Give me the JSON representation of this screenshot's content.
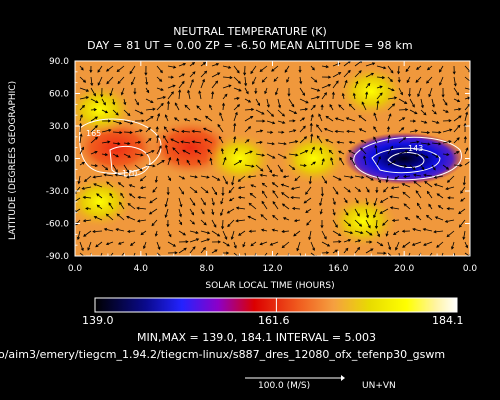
{
  "chart_data": {
    "type": "heatmap",
    "title": "NEUTRAL TEMPERATURE (K)",
    "subtitle": "DAY =   81   UT =   0.00   ZP =   -6.50   MEAN ALTITUDE =   98 km",
    "xlabel": "SOLAR LOCAL TIME (HOURS)",
    "ylabel": "LATITUDE (DEGREES GEOGRAPHIC)",
    "xlim": [
      0,
      24
    ],
    "ylim": [
      -90,
      90
    ],
    "x_ticks": [
      "0.0",
      "4.0",
      "8.0",
      "12.0",
      "16.0",
      "20.0",
      "0.0"
    ],
    "y_ticks": [
      "90.0",
      "60.0",
      "30.0",
      "0.0",
      "-30.0",
      "-60.0",
      "-90.0"
    ],
    "colorbar": {
      "min_label": "139.0",
      "mid_label": "161.6",
      "max_label": "184.1"
    },
    "contour_labels": [
      "165",
      "170",
      "143"
    ],
    "min": 139.0,
    "max": 184.1,
    "interval": 5.003,
    "minmax_text": "MIN,MAX =        139.0,        184.1  INTERVAL =       5.003",
    "features": [
      {
        "kind": "warm",
        "x": 2.5,
        "y": 10,
        "value": 172
      },
      {
        "kind": "warm",
        "x": 7.0,
        "y": 10,
        "value": 167
      },
      {
        "kind": "warm",
        "x": 20.5,
        "y": 0,
        "value": 168
      },
      {
        "kind": "cold",
        "x": 20.0,
        "y": 0,
        "value": 139
      },
      {
        "kind": "high",
        "x": 1.5,
        "y": 45,
        "value": 178
      },
      {
        "kind": "high",
        "x": 1.5,
        "y": -40,
        "value": 178
      },
      {
        "kind": "high",
        "x": 14.5,
        "y": 0,
        "value": 180
      },
      {
        "kind": "high",
        "x": 10.0,
        "y": 0,
        "value": 176
      },
      {
        "kind": "high",
        "x": 18.0,
        "y": 62,
        "value": 176
      },
      {
        "kind": "high",
        "x": 17.5,
        "y": -58,
        "value": 176
      }
    ],
    "grid": false,
    "legend": "none"
  },
  "file_path": "o/aim3/emery/tiegcm_1.94.2/tiegcm-linux/s887_dres_12080_ofx_tefenp30_gswm",
  "vector": {
    "label": "100.0 (M/S)",
    "components": "UN+VN"
  },
  "colors": {
    "background": "#000000",
    "text": "#ffffff",
    "arrows": "#000000",
    "contours": "#ffffff"
  }
}
